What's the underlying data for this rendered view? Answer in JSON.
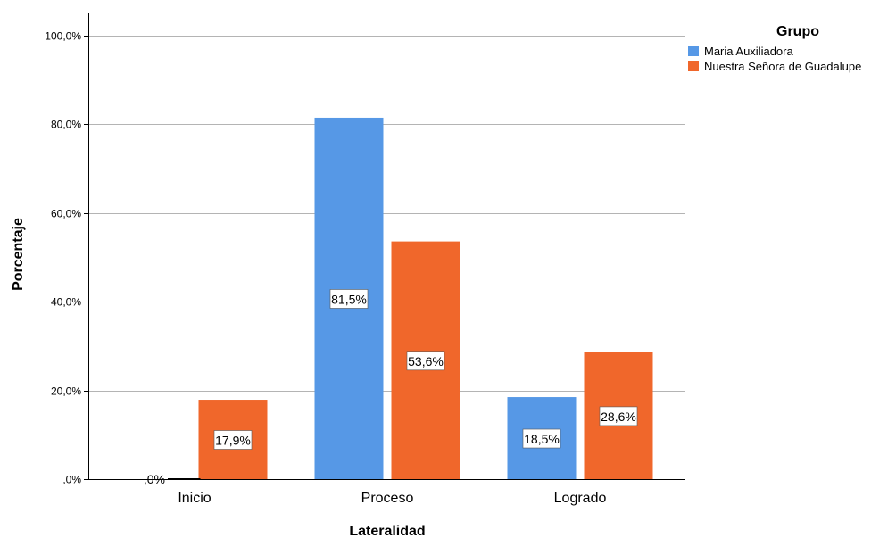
{
  "chart_data": {
    "type": "bar",
    "xlabel": "Lateralidad",
    "ylabel": "Porcentaje",
    "ylim": [
      0,
      105
    ],
    "yticks": [
      {
        "value": 0,
        "label": ",0%"
      },
      {
        "value": 20,
        "label": "20,0%"
      },
      {
        "value": 40,
        "label": "40,0%"
      },
      {
        "value": 60,
        "label": "60,0%"
      },
      {
        "value": 80,
        "label": "80,0%"
      },
      {
        "value": 100,
        "label": "100,0%"
      }
    ],
    "grid": true,
    "categories": [
      "Inicio",
      "Proceso",
      "Logrado"
    ],
    "series": [
      {
        "name": "Maria Auxiliadora",
        "color": "#5698e6",
        "values": [
          0,
          81.5,
          18.5
        ],
        "labels": [
          ",0%",
          "81,5%",
          "18,5%"
        ]
      },
      {
        "name": "Nuestra Señora de Guadalupe",
        "color": "#f0672b",
        "values": [
          17.9,
          53.6,
          28.6
        ],
        "labels": [
          "17,9%",
          "53,6%",
          "28,6%"
        ]
      }
    ],
    "legend": {
      "title": "Grupo",
      "position": "top-right"
    }
  }
}
